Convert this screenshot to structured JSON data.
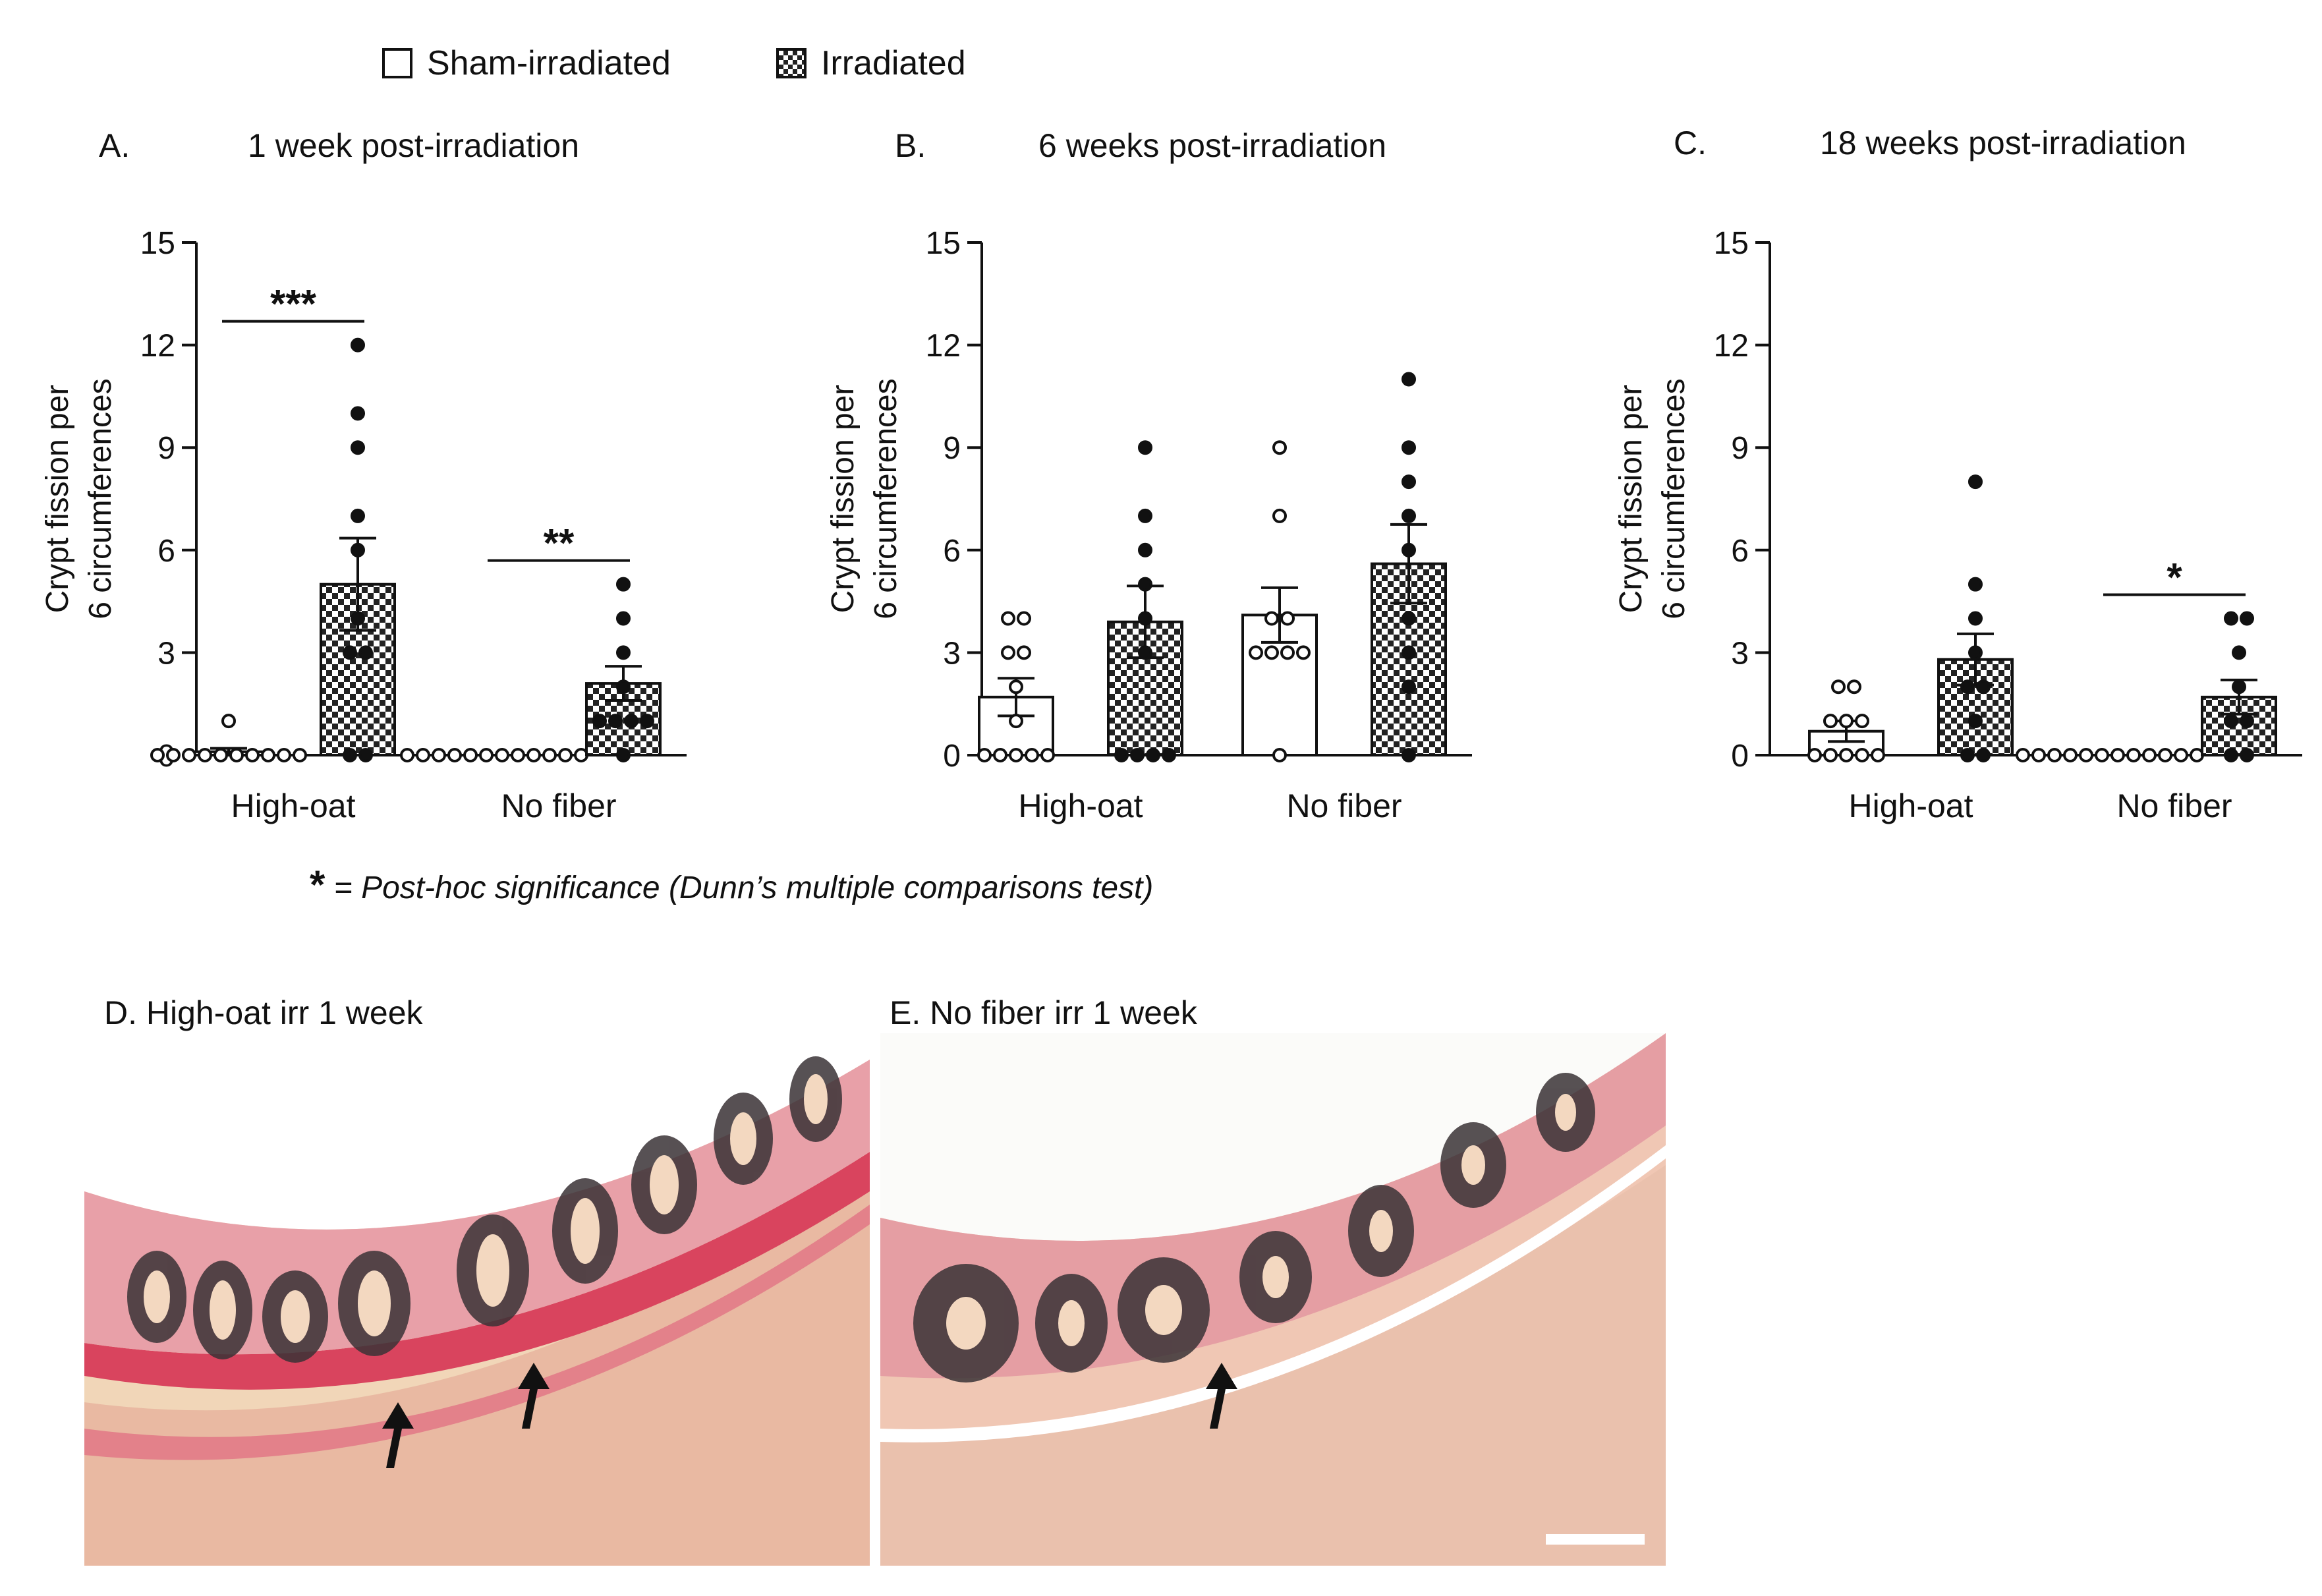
{
  "legend": {
    "sham_label": "Sham-irradiated",
    "irr_label": "Irradiated"
  },
  "colors": {
    "sham_fill": "#ffffff",
    "irr_pattern_dark": "#222222",
    "axis": "#111111",
    "tissue_pink": "#e8a0a8",
    "tissue_cream": "#f1d6b8",
    "muscle_red": "#d9445e",
    "crypt_dark": "#2f2a2e",
    "arrow": "#111111"
  },
  "footnote": {
    "star": "*",
    "text": " = Post-hoc significance (Dunn’s multiple comparisons test)"
  },
  "panels": [
    {
      "label": "A.",
      "title": "1 week post-irradiation"
    },
    {
      "label": "B.",
      "title": "6 weeks post-irradiation"
    },
    {
      "label": "C.",
      "title": "18 weeks post-irradiation"
    }
  ],
  "chart_data": [
    {
      "type": "bar",
      "title": "1 week post-irradiation",
      "ylabel_line1": "Crypt fission per",
      "ylabel_line2": "6 circumferences",
      "xlabel": "",
      "ylim": [
        0,
        15
      ],
      "yticks": [
        "0",
        "3",
        "6",
        "9",
        "12",
        "15"
      ],
      "categories": [
        "High-oat",
        "No fiber"
      ],
      "series": [
        {
          "name": "Sham-irradiated",
          "values": [
            0.1,
            0
          ],
          "errors": [
            0.1,
            0
          ],
          "points": [
            [
              0,
              0,
              0,
              0,
              0,
              0,
              0,
              0,
              0,
              0,
              1
            ],
            [
              0,
              0,
              0,
              0,
              0,
              0,
              0,
              0,
              0,
              0,
              0,
              0
            ]
          ]
        },
        {
          "name": "Irradiated",
          "values": [
            5.0,
            2.1
          ],
          "errors": [
            1.35,
            0.5
          ],
          "points": [
            [
              0,
              0,
              3,
              3,
              4,
              6,
              7,
              9,
              10,
              12
            ],
            [
              0,
              1,
              1,
              1,
              1,
              2,
              3,
              4,
              5
            ]
          ]
        }
      ],
      "significance": [
        {
          "category": "High-oat",
          "label": "***"
        },
        {
          "category": "No fiber",
          "label": "**"
        }
      ]
    },
    {
      "type": "bar",
      "title": "6 weeks post-irradiation",
      "ylabel_line1": "Crypt fission per",
      "ylabel_line2": "6 circumferences",
      "xlabel": "",
      "ylim": [
        0,
        15
      ],
      "yticks": [
        "0",
        "3",
        "6",
        "9",
        "12",
        "15"
      ],
      "categories": [
        "High-oat",
        "No fiber"
      ],
      "series": [
        {
          "name": "Sham-irradiated",
          "values": [
            1.7,
            4.1
          ],
          "errors": [
            0.55,
            0.8
          ],
          "points": [
            [
              0,
              0,
              0,
              0,
              0,
              1,
              2,
              3,
              3,
              4,
              4
            ],
            [
              0,
              3,
              3,
              3,
              3,
              4,
              4,
              7,
              9
            ]
          ]
        },
        {
          "name": "Irradiated",
          "values": [
            3.9,
            5.6
          ],
          "errors": [
            1.05,
            1.15
          ],
          "points": [
            [
              0,
              0,
              0,
              0,
              3,
              4,
              5,
              6,
              7,
              9
            ],
            [
              0,
              2,
              3,
              4,
              6,
              7,
              8,
              9,
              11
            ]
          ]
        }
      ],
      "significance": []
    },
    {
      "type": "bar",
      "title": "18 weeks post-irradiation",
      "ylabel_line1": "Crypt fission per",
      "ylabel_line2": "6 circumferences",
      "xlabel": "",
      "ylim": [
        0,
        15
      ],
      "yticks": [
        "0",
        "3",
        "6",
        "9",
        "12",
        "15"
      ],
      "categories": [
        "High-oat",
        "No fiber"
      ],
      "series": [
        {
          "name": "Sham-irradiated",
          "values": [
            0.7,
            0
          ],
          "errors": [
            0.3,
            0
          ],
          "points": [
            [
              0,
              0,
              0,
              0,
              0,
              1,
              1,
              1,
              2,
              2
            ],
            [
              0,
              0,
              0,
              0,
              0,
              0,
              0,
              0,
              0,
              0,
              0,
              0
            ]
          ]
        },
        {
          "name": "Irradiated",
          "values": [
            2.8,
            1.7
          ],
          "errors": [
            0.75,
            0.5
          ],
          "points": [
            [
              0,
              0,
              1,
              2,
              2,
              3,
              4,
              5,
              8
            ],
            [
              0,
              0,
              1,
              1,
              2,
              3,
              4,
              4
            ]
          ]
        }
      ],
      "significance": [
        {
          "category": "No fiber",
          "label": "*"
        }
      ]
    }
  ],
  "histology": [
    {
      "label": "D. High-oat irr 1 week",
      "arrows": 2
    },
    {
      "label": "E. No fiber irr 1 week",
      "arrows": 1
    }
  ]
}
